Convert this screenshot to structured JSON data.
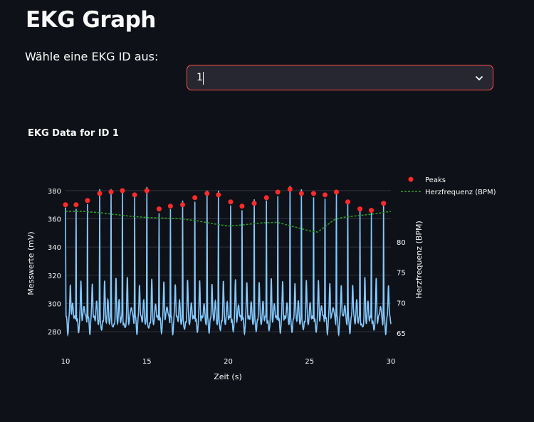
{
  "page": {
    "title": "EKG Graph",
    "select_label": "Wähle eine EKG ID aus:",
    "select_value": "1"
  },
  "colors": {
    "background": "#0e1117",
    "accent": "#ff4b4b",
    "ekg_line": "#83c9ff",
    "peaks": "#ff2b2b",
    "bpm_line": "#2ca02c"
  },
  "chart_data": {
    "type": "line",
    "title": "EKG Data for ID 1",
    "xlabel": "Zeit (s)",
    "ylabel": "Messwerte (mV)",
    "y2label": "Herzfrequenz (BPM)",
    "xlim": [
      10,
      30
    ],
    "ylim": [
      276,
      386
    ],
    "y2lim": [
      64.3,
      89.8
    ],
    "x_ticks": [
      10,
      15,
      20,
      25,
      30
    ],
    "y_ticks": [
      280,
      300,
      320,
      340,
      360,
      380
    ],
    "y2_ticks": [
      65,
      70,
      75,
      80
    ],
    "grid": true,
    "legend_position": "top-right",
    "legend": [
      "Peaks",
      "Herzfrequenz (BPM)"
    ],
    "series": [
      {
        "name": "Peaks",
        "type": "scatter",
        "x": [
          10.0,
          10.65,
          11.35,
          12.1,
          12.8,
          13.5,
          14.25,
          15.0,
          15.75,
          16.45,
          17.2,
          17.95,
          18.7,
          19.4,
          20.15,
          20.85,
          21.6,
          22.35,
          23.05,
          23.8,
          24.5,
          25.25,
          25.95,
          26.65,
          27.35,
          28.1,
          28.8,
          29.55
        ],
        "y": [
          370,
          370,
          373,
          378,
          379,
          380,
          377,
          380,
          367,
          369,
          370,
          375,
          378,
          377,
          372,
          369,
          371,
          375,
          379,
          381,
          378,
          378,
          377,
          379,
          372,
          367,
          366,
          371
        ]
      },
      {
        "name": "Herzfrequenz (BPM)",
        "type": "line",
        "x": [
          10.0,
          11.0,
          12.0,
          13.0,
          14.0,
          15.0,
          16.0,
          17.0,
          18.0,
          19.0,
          20.0,
          21.0,
          22.0,
          23.0,
          24.0,
          25.0,
          25.5,
          26.0,
          26.5,
          27.0,
          28.0,
          29.0,
          30.0
        ],
        "y": [
          85.0,
          85.0,
          84.8,
          84.5,
          84.2,
          84.0,
          83.9,
          83.8,
          83.5,
          83.0,
          82.6,
          82.8,
          83.1,
          83.2,
          82.5,
          81.8,
          81.6,
          82.6,
          83.6,
          84.0,
          84.3,
          84.6,
          85.0
        ]
      },
      {
        "name": "",
        "type": "line",
        "x_range": [
          10,
          30
        ],
        "beat_times": [
          10.0,
          10.65,
          11.35,
          12.1,
          12.8,
          13.5,
          14.25,
          15.0,
          15.75,
          16.45,
          17.2,
          17.95,
          18.7,
          19.4,
          20.15,
          20.85,
          21.6,
          22.35,
          23.05,
          23.8,
          24.5,
          25.25,
          25.95,
          26.65,
          27.35,
          28.1,
          28.8,
          29.55
        ],
        "baseline": 288,
        "secondary_peak": 325,
        "minimum": 280
      }
    ]
  }
}
